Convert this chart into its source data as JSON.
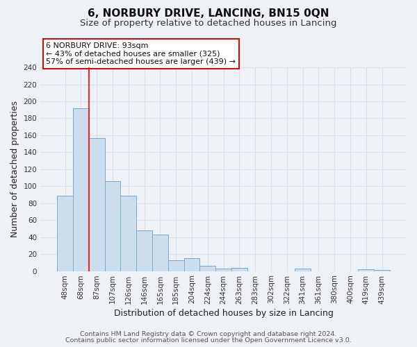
{
  "title": "6, NORBURY DRIVE, LANCING, BN15 0QN",
  "subtitle": "Size of property relative to detached houses in Lancing",
  "xlabel": "Distribution of detached houses by size in Lancing",
  "ylabel": "Number of detached properties",
  "bar_labels": [
    "48sqm",
    "68sqm",
    "87sqm",
    "107sqm",
    "126sqm",
    "146sqm",
    "165sqm",
    "185sqm",
    "204sqm",
    "224sqm",
    "244sqm",
    "263sqm",
    "283sqm",
    "302sqm",
    "322sqm",
    "341sqm",
    "361sqm",
    "380sqm",
    "400sqm",
    "419sqm",
    "439sqm"
  ],
  "bar_values": [
    89,
    192,
    157,
    106,
    89,
    48,
    43,
    13,
    15,
    6,
    3,
    4,
    0,
    0,
    0,
    3,
    0,
    0,
    0,
    2,
    1
  ],
  "bar_color": "#ccdded",
  "bar_edge_color": "#7aaacc",
  "ylim": [
    0,
    240
  ],
  "yticks": [
    0,
    20,
    40,
    60,
    80,
    100,
    120,
    140,
    160,
    180,
    200,
    220,
    240
  ],
  "red_line_x": 1.5,
  "annotation_title": "6 NORBURY DRIVE: 93sqm",
  "annotation_line1": "← 43% of detached houses are smaller (325)",
  "annotation_line2": "57% of semi-detached houses are larger (439) →",
  "footer_line1": "Contains HM Land Registry data © Crown copyright and database right 2024.",
  "footer_line2": "Contains public sector information licensed under the Open Government Licence v3.0.",
  "bg_color": "#eef2f7",
  "plot_bg_color": "#eef2f7",
  "grid_color": "#d8e0e8",
  "title_fontsize": 11,
  "subtitle_fontsize": 9.5,
  "axis_label_fontsize": 9,
  "tick_fontsize": 7.5,
  "footer_fontsize": 6.8
}
